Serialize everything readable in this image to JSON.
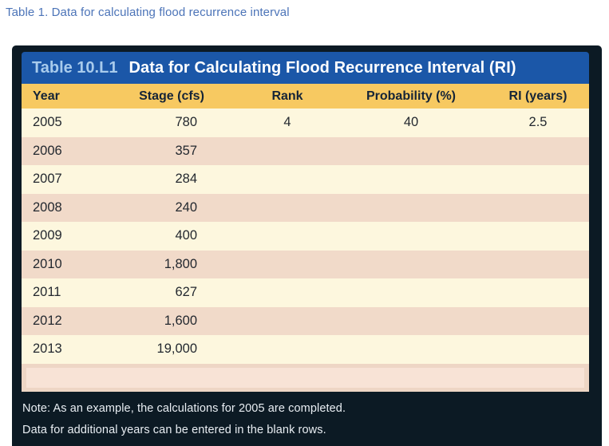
{
  "page": {
    "caption": "Table 1. Data for calculating flood recurrence interval"
  },
  "table": {
    "label": "Table 10.L1",
    "title": "Data for Calculating Flood Recurrence Interval (RI)",
    "headers": [
      "Year",
      "Stage (cfs)",
      "Rank",
      "Probability (%)",
      "RI (years)"
    ],
    "rows": [
      {
        "year": "2005",
        "stage": "780",
        "rank": "4",
        "probability": "40",
        "ri": "2.5"
      },
      {
        "year": "2006",
        "stage": "357",
        "rank": "",
        "probability": "",
        "ri": ""
      },
      {
        "year": "2007",
        "stage": "284",
        "rank": "",
        "probability": "",
        "ri": ""
      },
      {
        "year": "2008",
        "stage": "240",
        "rank": "",
        "probability": "",
        "ri": ""
      },
      {
        "year": "2009",
        "stage": "400",
        "rank": "",
        "probability": "",
        "ri": ""
      },
      {
        "year": "2010",
        "stage": "1,800",
        "rank": "",
        "probability": "",
        "ri": ""
      },
      {
        "year": "2011",
        "stage": "627",
        "rank": "",
        "probability": "",
        "ri": ""
      },
      {
        "year": "2012",
        "stage": "1,600",
        "rank": "",
        "probability": "",
        "ri": ""
      },
      {
        "year": "2013",
        "stage": "19,000",
        "rank": "",
        "probability": "",
        "ri": ""
      }
    ],
    "empty_row_value": "",
    "notes": [
      "Note: As an example, the calculations for 2005 are completed.",
      "Data for additional years can be entered in the blank rows."
    ],
    "colors": {
      "frame": "#0c1a24",
      "title_bar": "#1b57a8",
      "title_label_text": "#a8cbec",
      "title_text": "#ffffff",
      "header_bg": "#f7c961",
      "header_text": "#152437",
      "row_cream": "#fdf7de",
      "row_pink": "#f1dac9",
      "empty_row_bg": "#eed6c5",
      "empty_row_field": "#f8e3d6",
      "caption_text": "#4c74b8"
    }
  }
}
